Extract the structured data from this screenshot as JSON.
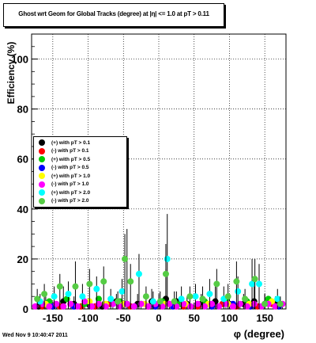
{
  "chart_data": {
    "type": "scatter",
    "title": "Ghost wrt Geom for Global Tracks (degree) at |η| <= 1.0 at pT > 0.11",
    "xlabel": "φ (degree)",
    "ylabel": "Efficiency (%)",
    "xlim": [
      -180,
      180
    ],
    "ylim": [
      0,
      110
    ],
    "x_ticks": [
      "-150",
      "-100",
      "-50",
      "0",
      "50",
      "100",
      "150"
    ],
    "x_tick_values": [
      -150,
      -100,
      -50,
      0,
      50,
      100,
      150
    ],
    "y_ticks": [
      "0",
      "20",
      "40",
      "60",
      "80",
      "100"
    ],
    "y_tick_values": [
      0,
      20,
      40,
      60,
      80,
      100
    ],
    "grid": true,
    "legend_position": "left-middle",
    "series": [
      {
        "name": "(+) with pT > 0.1",
        "color": "#000000",
        "points": [
          [
            -170,
            1
          ],
          [
            -160,
            2
          ],
          [
            -150,
            1
          ],
          [
            -135,
            3
          ],
          [
            -120,
            2
          ],
          [
            -100,
            2
          ],
          [
            -80,
            1
          ],
          [
            -60,
            3
          ],
          [
            -45,
            2
          ],
          [
            -30,
            2
          ],
          [
            -10,
            3
          ],
          [
            0,
            2
          ],
          [
            10,
            4
          ],
          [
            25,
            3
          ],
          [
            40,
            2
          ],
          [
            60,
            2
          ],
          [
            80,
            3
          ],
          [
            100,
            2
          ],
          [
            120,
            2
          ],
          [
            135,
            3
          ],
          [
            150,
            2
          ],
          [
            165,
            2
          ]
        ],
        "errors": [
          [
            -170,
            3
          ],
          [
            -160,
            5
          ],
          [
            -150,
            3
          ],
          [
            -135,
            9
          ],
          [
            -120,
            5
          ],
          [
            -100,
            4
          ],
          [
            -80,
            3
          ],
          [
            -60,
            6
          ],
          [
            -45,
            32
          ],
          [
            -30,
            6
          ],
          [
            -10,
            8
          ],
          [
            0,
            6
          ],
          [
            10,
            16
          ],
          [
            25,
            7
          ],
          [
            40,
            5
          ],
          [
            60,
            6
          ],
          [
            80,
            9
          ],
          [
            100,
            6
          ],
          [
            120,
            6
          ],
          [
            135,
            9
          ],
          [
            150,
            6
          ],
          [
            165,
            5
          ]
        ]
      },
      {
        "name": "(-) with pT > 0.1",
        "color": "#ff0000",
        "points": [
          [
            -165,
            1
          ],
          [
            -140,
            1
          ],
          [
            -110,
            1
          ],
          [
            -90,
            1
          ],
          [
            -70,
            2
          ],
          [
            -40,
            1
          ],
          [
            -15,
            1
          ],
          [
            15,
            2
          ],
          [
            35,
            1
          ],
          [
            55,
            1
          ],
          [
            90,
            2
          ],
          [
            110,
            1
          ],
          [
            140,
            1
          ],
          [
            160,
            2
          ]
        ]
      },
      {
        "name": "(+) with pT > 0.5",
        "color": "#00cc00",
        "points": [
          [
            -155,
            3
          ],
          [
            -130,
            4
          ],
          [
            -105,
            2
          ],
          [
            -85,
            4
          ],
          [
            -55,
            3
          ],
          [
            -25,
            2
          ],
          [
            5,
            3
          ],
          [
            30,
            2
          ],
          [
            65,
            3
          ],
          [
            95,
            4
          ],
          [
            125,
            3
          ],
          [
            155,
            4
          ]
        ]
      },
      {
        "name": "(-) with pT > 0.5",
        "color": "#0000ff",
        "points": [
          [
            -150,
            1
          ],
          [
            -120,
            1
          ],
          [
            -95,
            1
          ],
          [
            -65,
            2
          ],
          [
            -35,
            1
          ],
          [
            -5,
            1
          ],
          [
            20,
            1
          ],
          [
            45,
            1
          ],
          [
            75,
            1
          ],
          [
            105,
            2
          ],
          [
            130,
            1
          ],
          [
            170,
            1
          ]
        ]
      },
      {
        "name": "(+) with pT > 1.0",
        "color": "#ffff00",
        "points": [
          [
            -160,
            2
          ],
          [
            -125,
            2
          ],
          [
            -98,
            3
          ],
          [
            -75,
            2
          ],
          [
            -50,
            2
          ],
          [
            -20,
            2
          ],
          [
            8,
            2
          ],
          [
            38,
            2
          ],
          [
            70,
            2
          ],
          [
            98,
            2
          ],
          [
            128,
            2
          ],
          [
            160,
            3
          ]
        ]
      },
      {
        "name": "(-) with pT > 1.0",
        "color": "#ff00ff",
        "points": [
          [
            -175,
            1
          ],
          [
            -165,
            2
          ],
          [
            -155,
            1
          ],
          [
            -145,
            2
          ],
          [
            -135,
            1
          ],
          [
            -125,
            2
          ],
          [
            -115,
            1
          ],
          [
            -105,
            3
          ],
          [
            -95,
            1
          ],
          [
            -85,
            2
          ],
          [
            -75,
            1
          ],
          [
            -65,
            2
          ],
          [
            -55,
            1
          ],
          [
            -45,
            2
          ],
          [
            -35,
            1
          ],
          [
            -25,
            2
          ],
          [
            -15,
            1
          ],
          [
            -5,
            2
          ],
          [
            5,
            1
          ],
          [
            15,
            2
          ],
          [
            25,
            1
          ],
          [
            35,
            2
          ],
          [
            45,
            1
          ],
          [
            55,
            2
          ],
          [
            65,
            1
          ],
          [
            75,
            2
          ],
          [
            85,
            1
          ],
          [
            95,
            2
          ],
          [
            105,
            1
          ],
          [
            115,
            2
          ],
          [
            125,
            1
          ],
          [
            135,
            2
          ],
          [
            145,
            1
          ],
          [
            155,
            2
          ],
          [
            165,
            1
          ],
          [
            175,
            2
          ]
        ]
      },
      {
        "name": "(+) with pT > 2.0",
        "color": "#00ffff",
        "points": [
          [
            -168,
            3
          ],
          [
            -148,
            5
          ],
          [
            -128,
            6
          ],
          [
            -108,
            5
          ],
          [
            -88,
            8
          ],
          [
            -68,
            4
          ],
          [
            -52,
            7
          ],
          [
            -28,
            14
          ],
          [
            -8,
            3
          ],
          [
            12,
            20
          ],
          [
            32,
            4
          ],
          [
            52,
            5
          ],
          [
            72,
            6
          ],
          [
            92,
            4
          ],
          [
            112,
            7
          ],
          [
            132,
            10
          ],
          [
            142,
            10
          ],
          [
            168,
            4
          ]
        ],
        "errors": [
          [
            -168,
            6
          ],
          [
            -148,
            9
          ],
          [
            -128,
            11
          ],
          [
            -108,
            10
          ],
          [
            -88,
            13
          ],
          [
            -68,
            8
          ],
          [
            -52,
            12
          ],
          [
            -28,
            22
          ],
          [
            -8,
            7
          ],
          [
            12,
            38
          ],
          [
            32,
            9
          ],
          [
            52,
            10
          ],
          [
            72,
            12
          ],
          [
            92,
            9
          ],
          [
            112,
            13
          ],
          [
            132,
            20
          ],
          [
            142,
            18
          ],
          [
            168,
            8
          ]
        ]
      },
      {
        "name": "(-) with pT > 2.0",
        "color": "#55cc44",
        "points": [
          [
            -172,
            4
          ],
          [
            -162,
            6
          ],
          [
            -140,
            9
          ],
          [
            -118,
            9
          ],
          [
            -98,
            10
          ],
          [
            -78,
            11
          ],
          [
            -58,
            3
          ],
          [
            -48,
            20
          ],
          [
            -40,
            11
          ],
          [
            -18,
            5
          ],
          [
            2,
            3
          ],
          [
            10,
            14
          ],
          [
            22,
            3
          ],
          [
            44,
            5
          ],
          [
            62,
            4
          ],
          [
            82,
            10
          ],
          [
            98,
            5
          ],
          [
            110,
            11
          ],
          [
            122,
            4
          ],
          [
            136,
            12
          ],
          [
            150,
            2
          ],
          [
            172,
            2
          ]
        ],
        "errors": [
          [
            -172,
            8
          ],
          [
            -162,
            10
          ],
          [
            -140,
            14
          ],
          [
            -118,
            19
          ],
          [
            -98,
            16
          ],
          [
            -78,
            17
          ],
          [
            -58,
            7
          ],
          [
            -48,
            30
          ],
          [
            -40,
            18
          ],
          [
            -18,
            9
          ],
          [
            2,
            7
          ],
          [
            10,
            26
          ],
          [
            22,
            7
          ],
          [
            44,
            9
          ],
          [
            62,
            9
          ],
          [
            82,
            16
          ],
          [
            98,
            10
          ],
          [
            110,
            19
          ],
          [
            122,
            8
          ],
          [
            136,
            20
          ],
          [
            150,
            6
          ],
          [
            172,
            5
          ]
        ]
      }
    ]
  },
  "footer": "Wed Nov  9 10:40:47 2011"
}
